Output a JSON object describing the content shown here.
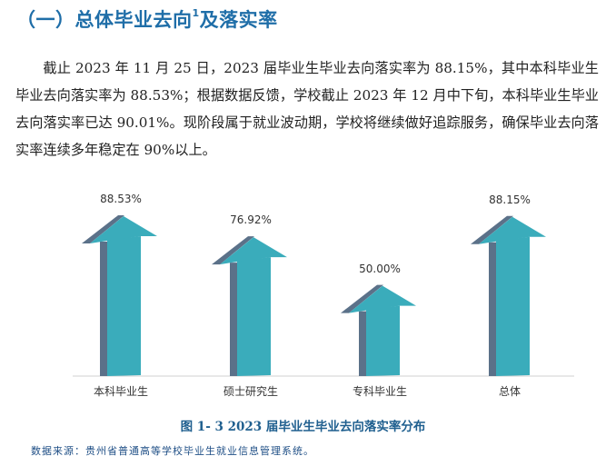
{
  "heading": {
    "text": "（一）总体毕业去向",
    "footnote": "1",
    "text_after": "及落实率"
  },
  "paragraph": "截止 2023 年 11 月 25 日，2023 届毕业生毕业去向落实率为 88.15%，其中本科毕业生毕业去向落实率为 88.53%；根据数据反馈，学校截止 2023 年 12 月中下旬，本科毕业生毕业去向落实率已达 90.01%。现阶段属于就业波动期，学校将继续做好追踪服务，确保毕业去向落实率连续多年稳定在 90%以上。",
  "chart_data": {
    "type": "bar",
    "style": "3d-arrow",
    "title": "图 1- 3  2023 届毕业生毕业去向落实率分布",
    "categories": [
      "本科毕业生",
      "硕士研究生",
      "专科毕业生",
      "总体"
    ],
    "values": [
      88.53,
      76.92,
      50.0,
      88.15
    ],
    "value_labels": [
      "88.53%",
      "76.92%",
      "50.00%",
      "88.15%"
    ],
    "xlabel": "",
    "ylabel": "",
    "grid": false,
    "legend": "none",
    "colors": {
      "front": "#3aacbb",
      "side": "#5b7189",
      "baseline": "#d0d0d0"
    }
  },
  "caption": "图 1- 3  2023 届毕业生毕业去向落实率分布",
  "source": "数据来源：贵州省普通高等学校毕业生就业信息管理系统。"
}
